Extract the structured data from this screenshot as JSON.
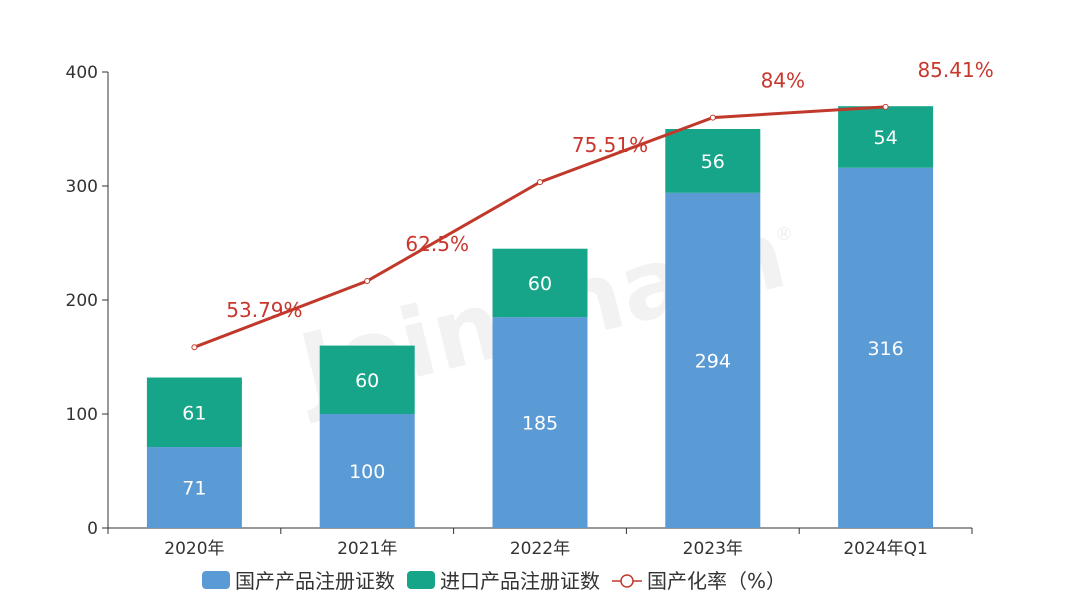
{
  "chart_data": {
    "type": "bar",
    "stacked": true,
    "categories": [
      "2020年",
      "2021年",
      "2022年",
      "2023年",
      "2024年Q1"
    ],
    "series": [
      {
        "name": "国产产品注册证数",
        "type": "bar",
        "color": "#5b9bd5",
        "values": [
          71,
          100,
          185,
          294,
          316
        ]
      },
      {
        "name": "进口产品注册证数",
        "type": "bar",
        "color": "#17a589",
        "values": [
          61,
          60,
          60,
          56,
          54
        ]
      },
      {
        "name": "国产化率（%）",
        "type": "line",
        "color": "#c0392b",
        "values": [
          53.79,
          62.5,
          75.51,
          84,
          85.41
        ],
        "labels": [
          "53.79%",
          "62.5%",
          "75.51%",
          "84%",
          "85.41%"
        ]
      }
    ],
    "ylim": [
      0,
      400
    ],
    "yticks": [
      0,
      100,
      200,
      300,
      400
    ],
    "rate_axis_range": [
      30,
      90
    ],
    "grid": false,
    "legend_position": "bottom"
  },
  "watermark": "Joinchain",
  "watermark_mark": "®"
}
